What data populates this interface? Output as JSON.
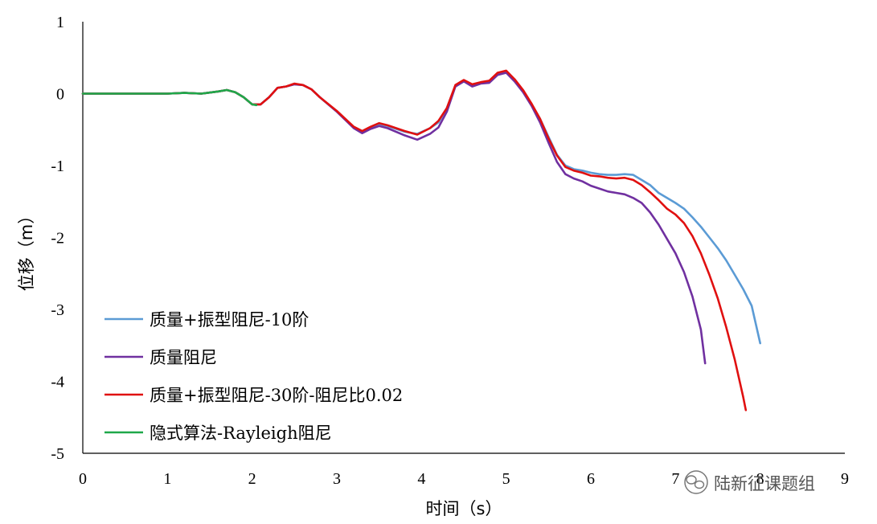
{
  "chart_data": {
    "type": "line",
    "xlabel": "时间（s）",
    "ylabel": "位移（m）",
    "xlim": [
      0,
      9
    ],
    "ylim": [
      -5,
      1
    ],
    "xticks": [
      0,
      1,
      2,
      3,
      4,
      5,
      6,
      7,
      8,
      9
    ],
    "yticks": [
      1,
      0,
      -1,
      -2,
      -3,
      -4,
      -5
    ],
    "grid": false,
    "legend_position": "bottom-left",
    "series": [
      {
        "name": "质量+振型阻尼-10阶",
        "color": "#5B9BD5",
        "x": [
          0,
          0.5,
          1.0,
          1.2,
          1.4,
          1.6,
          1.7,
          1.8,
          1.9,
          2.0,
          2.1,
          2.2,
          2.3,
          2.4,
          2.5,
          2.6,
          2.7,
          2.8,
          3.0,
          3.2,
          3.3,
          3.4,
          3.5,
          3.6,
          3.8,
          3.95,
          4.1,
          4.2,
          4.3,
          4.4,
          4.5,
          4.6,
          4.7,
          4.8,
          4.9,
          5.0,
          5.1,
          5.2,
          5.3,
          5.4,
          5.5,
          5.6,
          5.7,
          5.8,
          5.9,
          6.0,
          6.1,
          6.2,
          6.3,
          6.4,
          6.5,
          6.6,
          6.7,
          6.8,
          6.9,
          7.0,
          7.1,
          7.2,
          7.3,
          7.4,
          7.5,
          7.6,
          7.7,
          7.8,
          7.9,
          8.0
        ],
        "values": [
          0,
          0,
          0,
          0.01,
          0,
          0.03,
          0.05,
          0.02,
          -0.05,
          -0.15,
          -0.15,
          -0.05,
          0.08,
          0.1,
          0.13,
          0.12,
          0.06,
          -0.05,
          -0.25,
          -0.47,
          -0.53,
          -0.47,
          -0.42,
          -0.45,
          -0.53,
          -0.56,
          -0.48,
          -0.4,
          -0.2,
          0.1,
          0.17,
          0.12,
          0.15,
          0.16,
          0.27,
          0.3,
          0.18,
          0.03,
          -0.15,
          -0.35,
          -0.6,
          -0.85,
          -1.0,
          -1.05,
          -1.07,
          -1.1,
          -1.12,
          -1.13,
          -1.13,
          -1.12,
          -1.13,
          -1.2,
          -1.27,
          -1.38,
          -1.45,
          -1.52,
          -1.6,
          -1.72,
          -1.85,
          -2.0,
          -2.15,
          -2.32,
          -2.52,
          -2.72,
          -2.95,
          -3.47
        ]
      },
      {
        "name": "质量阻尼",
        "color": "#7030A0",
        "x": [
          0,
          0.5,
          1.0,
          1.2,
          1.4,
          1.6,
          1.7,
          1.8,
          1.9,
          2.0,
          2.1,
          2.2,
          2.3,
          2.4,
          2.5,
          2.6,
          2.7,
          2.8,
          3.0,
          3.2,
          3.3,
          3.4,
          3.5,
          3.6,
          3.8,
          3.95,
          4.1,
          4.2,
          4.3,
          4.4,
          4.5,
          4.6,
          4.7,
          4.8,
          4.9,
          5.0,
          5.1,
          5.2,
          5.3,
          5.4,
          5.5,
          5.6,
          5.7,
          5.8,
          5.9,
          6.0,
          6.1,
          6.2,
          6.3,
          6.4,
          6.5,
          6.6,
          6.7,
          6.8,
          6.9,
          7.0,
          7.1,
          7.2,
          7.3,
          7.35
        ],
        "values": [
          0,
          0,
          0,
          0.01,
          0,
          0.03,
          0.05,
          0.02,
          -0.05,
          -0.15,
          -0.15,
          -0.05,
          0.08,
          0.1,
          0.13,
          0.12,
          0.06,
          -0.05,
          -0.25,
          -0.48,
          -0.55,
          -0.49,
          -0.45,
          -0.48,
          -0.58,
          -0.64,
          -0.56,
          -0.47,
          -0.25,
          0.1,
          0.17,
          0.1,
          0.14,
          0.15,
          0.26,
          0.29,
          0.17,
          0.02,
          -0.17,
          -0.4,
          -0.68,
          -0.95,
          -1.12,
          -1.18,
          -1.22,
          -1.28,
          -1.32,
          -1.36,
          -1.38,
          -1.4,
          -1.45,
          -1.52,
          -1.65,
          -1.82,
          -2.02,
          -2.22,
          -2.48,
          -2.82,
          -3.28,
          -3.75
        ]
      },
      {
        "name": "质量+振型阻尼-30阶-阻尼比0.02",
        "color": "#E01010",
        "x": [
          0,
          0.5,
          1.0,
          1.2,
          1.4,
          1.6,
          1.7,
          1.8,
          1.9,
          2.0,
          2.1,
          2.2,
          2.3,
          2.4,
          2.5,
          2.6,
          2.7,
          2.8,
          3.0,
          3.2,
          3.3,
          3.4,
          3.5,
          3.6,
          3.8,
          3.95,
          4.1,
          4.2,
          4.3,
          4.4,
          4.5,
          4.6,
          4.7,
          4.8,
          4.9,
          5.0,
          5.1,
          5.2,
          5.3,
          5.4,
          5.5,
          5.6,
          5.7,
          5.8,
          5.9,
          6.0,
          6.1,
          6.2,
          6.3,
          6.4,
          6.5,
          6.6,
          6.7,
          6.8,
          6.9,
          7.0,
          7.1,
          7.2,
          7.3,
          7.4,
          7.5,
          7.6,
          7.7,
          7.8,
          7.83
        ],
        "values": [
          0,
          0,
          0,
          0.01,
          0,
          0.03,
          0.05,
          0.02,
          -0.05,
          -0.15,
          -0.15,
          -0.05,
          0.08,
          0.1,
          0.14,
          0.12,
          0.06,
          -0.05,
          -0.24,
          -0.46,
          -0.52,
          -0.46,
          -0.41,
          -0.44,
          -0.52,
          -0.57,
          -0.48,
          -0.38,
          -0.2,
          0.12,
          0.19,
          0.13,
          0.16,
          0.18,
          0.29,
          0.32,
          0.2,
          0.05,
          -0.14,
          -0.35,
          -0.62,
          -0.86,
          -1.02,
          -1.07,
          -1.1,
          -1.14,
          -1.15,
          -1.17,
          -1.18,
          -1.17,
          -1.2,
          -1.27,
          -1.37,
          -1.48,
          -1.6,
          -1.68,
          -1.8,
          -1.98,
          -2.22,
          -2.52,
          -2.85,
          -3.25,
          -3.7,
          -4.22,
          -4.4
        ]
      },
      {
        "name": "隐式算法-Rayleigh阻尼",
        "color": "#1FA84A",
        "x": [
          0,
          0.5,
          1.0,
          1.2,
          1.4,
          1.6,
          1.7,
          1.8,
          1.9,
          2.0,
          2.05
        ],
        "values": [
          0,
          0,
          0,
          0.01,
          0,
          0.03,
          0.05,
          0.02,
          -0.05,
          -0.15,
          -0.16
        ]
      }
    ]
  },
  "watermark": {
    "icon": "wechat-icon",
    "text": "陆新征课题组"
  }
}
